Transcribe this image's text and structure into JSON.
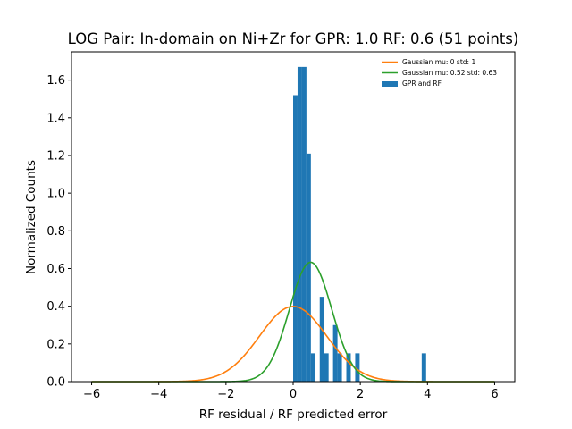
{
  "chart_data": {
    "type": "bar",
    "title": "LOG Pair: In-domain on Ni+Zr for GPR: 1.0 RF: 0.6 (51 points)",
    "xlabel": "RF residual / RF predicted error",
    "ylabel": "Normalized Counts",
    "xlim": [
      -6.6,
      6.6
    ],
    "ylim": [
      0,
      1.75
    ],
    "xticks": [
      -6,
      -4,
      -2,
      0,
      2,
      4,
      6
    ],
    "xtick_labels": [
      "−6",
      "−4",
      "−2",
      "0",
      "2",
      "4",
      "6"
    ],
    "yticks": [
      0.0,
      0.2,
      0.4,
      0.6,
      0.8,
      1.0,
      1.2,
      1.4,
      1.6
    ],
    "ytick_labels": [
      "0.0",
      "0.2",
      "0.4",
      "0.6",
      "0.8",
      "1.0",
      "1.2",
      "1.4",
      "1.6"
    ],
    "grid": false,
    "legend_position": "top-right",
    "histogram": {
      "name": "GPR and RF",
      "color": "#1f77b4",
      "bin_width": 0.132,
      "bins": [
        {
          "x0": 0.0,
          "value": 1.52
        },
        {
          "x0": 0.132,
          "value": 1.67
        },
        {
          "x0": 0.264,
          "value": 1.67
        },
        {
          "x0": 0.396,
          "value": 1.21
        },
        {
          "x0": 0.528,
          "value": 0.15
        },
        {
          "x0": 0.792,
          "value": 0.45
        },
        {
          "x0": 0.924,
          "value": 0.15
        },
        {
          "x0": 1.188,
          "value": 0.3
        },
        {
          "x0": 1.32,
          "value": 0.15
        },
        {
          "x0": 1.584,
          "value": 0.15
        },
        {
          "x0": 1.848,
          "value": 0.15
        },
        {
          "x0": 3.828,
          "value": 0.15
        }
      ]
    },
    "curves": [
      {
        "name": "Gaussian mu: 0 std: 1",
        "mu": 0,
        "std": 1,
        "color": "#ff7f0e",
        "x_range": [
          -6,
          6
        ]
      },
      {
        "name": "Gaussian mu: 0.52 std: 0.63",
        "mu": 0.52,
        "std": 0.63,
        "color": "#2ca02c",
        "x_range": [
          -6,
          6
        ]
      }
    ]
  }
}
